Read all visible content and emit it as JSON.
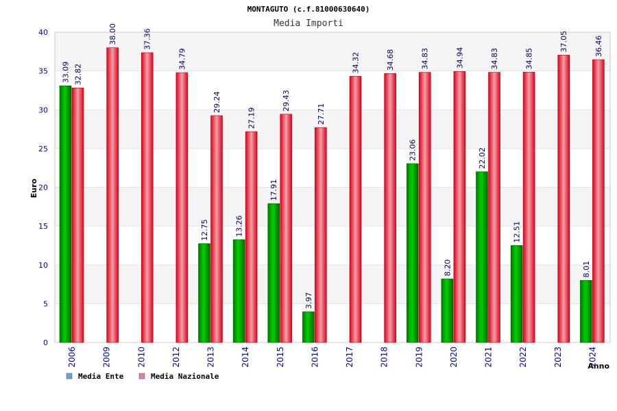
{
  "chart_data": {
    "type": "bar",
    "title": "MONTAGUTO (c.f.81000630640)",
    "subtitle": "Media Importi",
    "xlabel": "Anno",
    "ylabel": "Euro",
    "ylim": [
      0,
      40
    ],
    "yticks": [
      0,
      5,
      10,
      15,
      20,
      25,
      30,
      35,
      40
    ],
    "grid": true,
    "legend_position": "bottom-left",
    "categories": [
      "2006",
      "2009",
      "2010",
      "2012",
      "2013",
      "2014",
      "2015",
      "2016",
      "2017",
      "2018",
      "2019",
      "2020",
      "2021",
      "2022",
      "2023",
      "2024"
    ],
    "series": [
      {
        "name": "Media Ente",
        "legend_color": "#66a3e0",
        "bar_color": "#00b300",
        "values": [
          33.09,
          null,
          null,
          null,
          12.75,
          13.26,
          17.91,
          3.97,
          null,
          null,
          23.06,
          8.2,
          22.02,
          12.51,
          null,
          8.01
        ],
        "labels": [
          "33.09",
          "",
          "",
          "",
          "12.75",
          "13.26",
          "17.91",
          "3.97",
          "",
          "",
          "23.06",
          "8.20",
          "22.02",
          "12.51",
          "",
          "8.01"
        ]
      },
      {
        "name": "Media Nazionale",
        "legend_color": "#e080b0",
        "bar_color": "#e8001a",
        "values": [
          32.82,
          38.0,
          37.36,
          34.79,
          29.24,
          27.19,
          29.43,
          27.71,
          34.32,
          34.68,
          34.83,
          34.94,
          34.83,
          34.85,
          37.05,
          36.46
        ],
        "labels": [
          "32.82",
          "38.00",
          "37.36",
          "34.79",
          "29.24",
          "27.19",
          "29.43",
          "27.71",
          "34.32",
          "34.68",
          "34.83",
          "34.94",
          "34.83",
          "34.85",
          "37.05",
          "36.46"
        ]
      }
    ]
  }
}
